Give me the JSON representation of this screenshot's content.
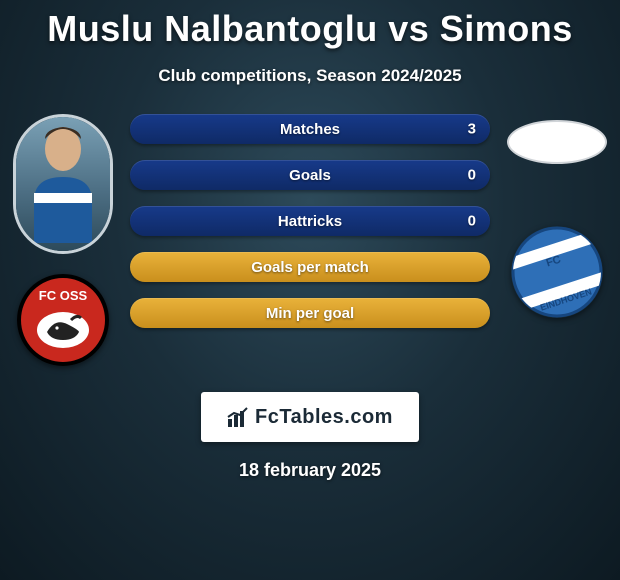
{
  "title": "Muslu Nalbantoglu vs Simons",
  "subtitle": "Club competitions, Season 2024/2025",
  "date": "18 february 2025",
  "footer_brand": "FcTables.com",
  "colors": {
    "bg_center": "#2d4a5a",
    "bg_mid": "#1a2e3a",
    "bg_edge": "#0d1a22",
    "bar_blue_a": "#173a8a",
    "bar_blue_b": "#0f2a66",
    "bar_yellow_a": "#e9b23a",
    "bar_yellow_b": "#c98f1d",
    "text": "#ffffff"
  },
  "bars": [
    {
      "label": "Matches",
      "value_right": "3",
      "style": "blue"
    },
    {
      "label": "Goals",
      "value_right": "0",
      "style": "blue"
    },
    {
      "label": "Hattricks",
      "value_right": "0",
      "style": "blue"
    },
    {
      "label": "Goals per match",
      "value_right": "",
      "style": "yellow"
    },
    {
      "label": "Min per goal",
      "value_right": "",
      "style": "yellow"
    }
  ],
  "left_player": {
    "name": "Muslu Nalbantoglu"
  },
  "right_player": {
    "name": "Simons"
  },
  "left_club": {
    "name": "FC Oss",
    "label": "FC OSS",
    "bg": "#c9281e",
    "ring": "#000000"
  },
  "right_club": {
    "name": "FC Eindhoven",
    "label": "EINDHOVEN",
    "bg": "#2e6fb7",
    "stripe": "#ffffff"
  }
}
